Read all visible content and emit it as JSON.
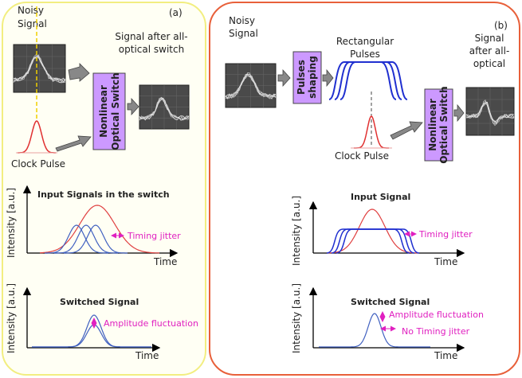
{
  "panel_a": {
    "label": "(a)",
    "noisy_signal": [
      "Noisy",
      "Signal"
    ],
    "output_signal": [
      "Signal after all-",
      "optical switch"
    ],
    "switch": [
      "Nonlinear",
      "Optical Switch"
    ],
    "clock_pulse": "Clock Pulse",
    "plots": [
      {
        "title": "Input Signals in the switch",
        "y_label": "Intensity [a.u.]",
        "x_label": "Time",
        "annotations": [
          "Timing jitter"
        ]
      },
      {
        "title": "Switched Signal",
        "y_label": "Intensity [a.u.]",
        "x_label": "Time",
        "annotations": [
          "Amplitude fluctuation"
        ]
      }
    ]
  },
  "panel_b": {
    "label": "(b)",
    "noisy_signal": [
      "Noisy",
      "Signal"
    ],
    "shaping": [
      "Pulses",
      "shaping"
    ],
    "rectangular": [
      "Rectangular",
      "Pulses"
    ],
    "output_signal": [
      "Signal",
      "after all-",
      "optical"
    ],
    "switch": [
      "Nonlinear",
      "Optical Switch"
    ],
    "clock_pulse": "Clock Pulse",
    "plots": [
      {
        "title": "Input Signal",
        "y_label": "Intensity [a.u.]",
        "x_label": "Time",
        "annotations": [
          "Timing jitter"
        ]
      },
      {
        "title": "Switched Signal",
        "y_label": "Intensity [a.u.]",
        "x_label": "Time",
        "annotations": [
          "Amplitude fluctuation",
          "No Timing jitter"
        ]
      }
    ]
  }
}
